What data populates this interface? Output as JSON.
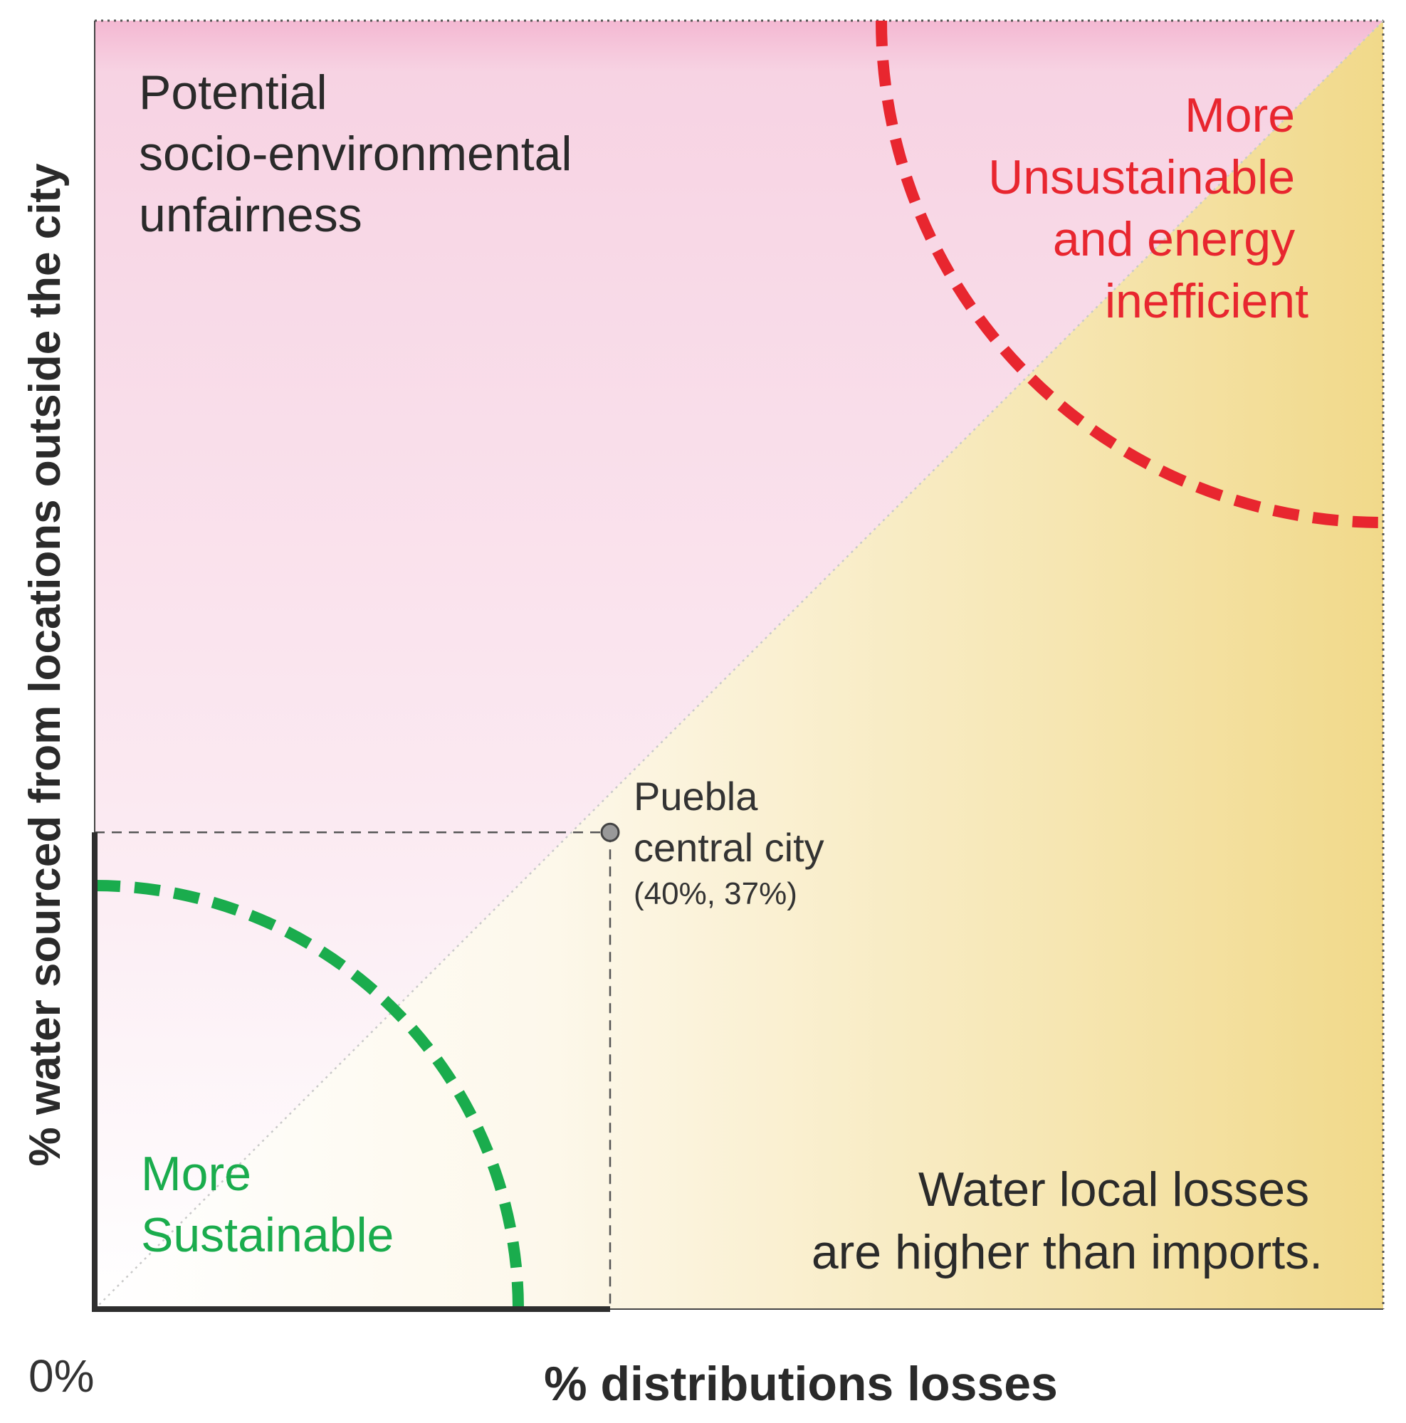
{
  "chart_data": {
    "type": "scatter",
    "xlabel": "% distributions losses",
    "ylabel": "% water sourced from locations outside the city",
    "origin_label": "0%",
    "xlim": [
      0,
      100
    ],
    "ylim": [
      0,
      100
    ],
    "grid": false,
    "reference_line": "x = y",
    "points": [
      {
        "name_lines": [
          "Puebla",
          "central city"
        ],
        "value_label": "(40%, 37%)",
        "x": 40,
        "y": 37
      }
    ],
    "regions": {
      "top_left": {
        "lines": [
          "Potential",
          "socio-environmental",
          "unfairness"
        ],
        "color": "#f4b8d2"
      },
      "bottom_right": {
        "lines": [
          "Water local losses",
          "are higher than imports."
        ],
        "color": "#f1d98a"
      },
      "unsustainable": {
        "lines": [
          "More",
          "Unsustainable",
          "and energy",
          "inefficient"
        ],
        "color": "#e8262f"
      },
      "sustainable": {
        "lines": [
          "More",
          "Sustainable"
        ],
        "color": "#1aac4d"
      }
    }
  }
}
